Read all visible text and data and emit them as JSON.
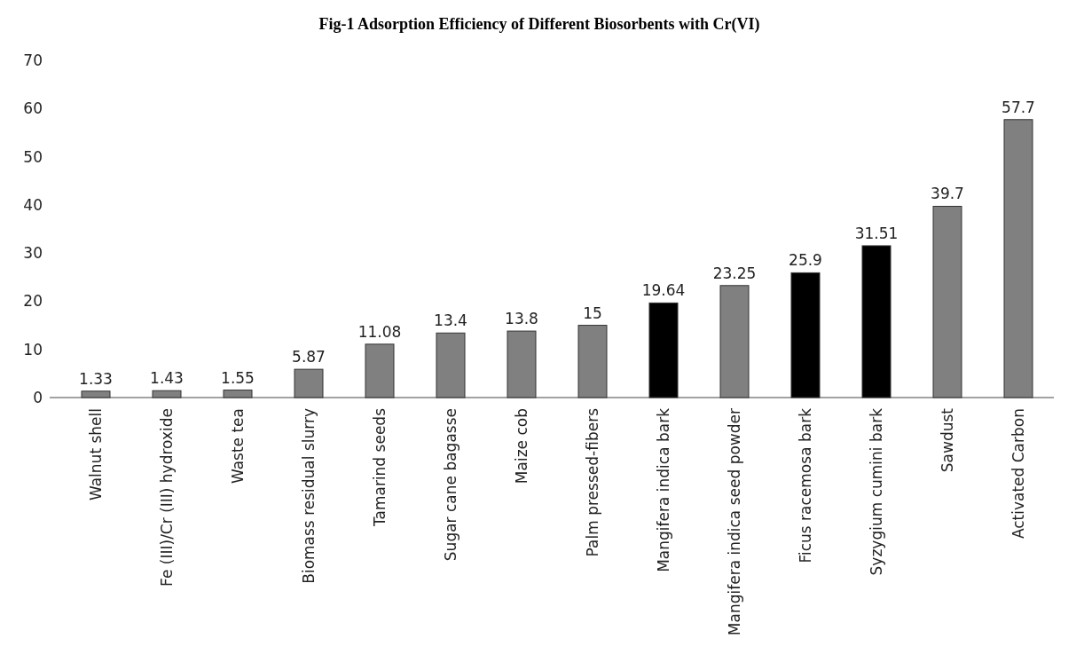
{
  "chart_data": {
    "type": "bar",
    "title": "Fig-1 Adsorption Efficiency of Different Biosorbents with Cr(VI)",
    "categories": [
      "Walnut shell",
      "Fe (III)/Cr (III) hydroxide",
      "Waste tea",
      "Biomass residual slurry",
      "Tamarind seeds",
      "Sugar cane bagasse",
      "Maize cob",
      "Palm pressed-fibers",
      "Mangifera indica bark",
      "Mangifera indica seed powder",
      "Ficus racemosa bark",
      "Syzygium cumini bark",
      "Sawdust",
      "Activated Carbon"
    ],
    "values": [
      1.33,
      1.43,
      1.55,
      5.87,
      11.08,
      13.4,
      13.8,
      15,
      19.64,
      23.25,
      25.9,
      31.51,
      39.7,
      57.7
    ],
    "colors": [
      "#808080",
      "#808080",
      "#808080",
      "#808080",
      "#808080",
      "#808080",
      "#808080",
      "#808080",
      "#000000",
      "#808080",
      "#000000",
      "#000000",
      "#808080",
      "#808080"
    ],
    "ylim": [
      0,
      70
    ],
    "yticks": [
      0,
      10,
      20,
      30,
      40,
      50,
      60,
      70
    ],
    "data_labels": true
  }
}
